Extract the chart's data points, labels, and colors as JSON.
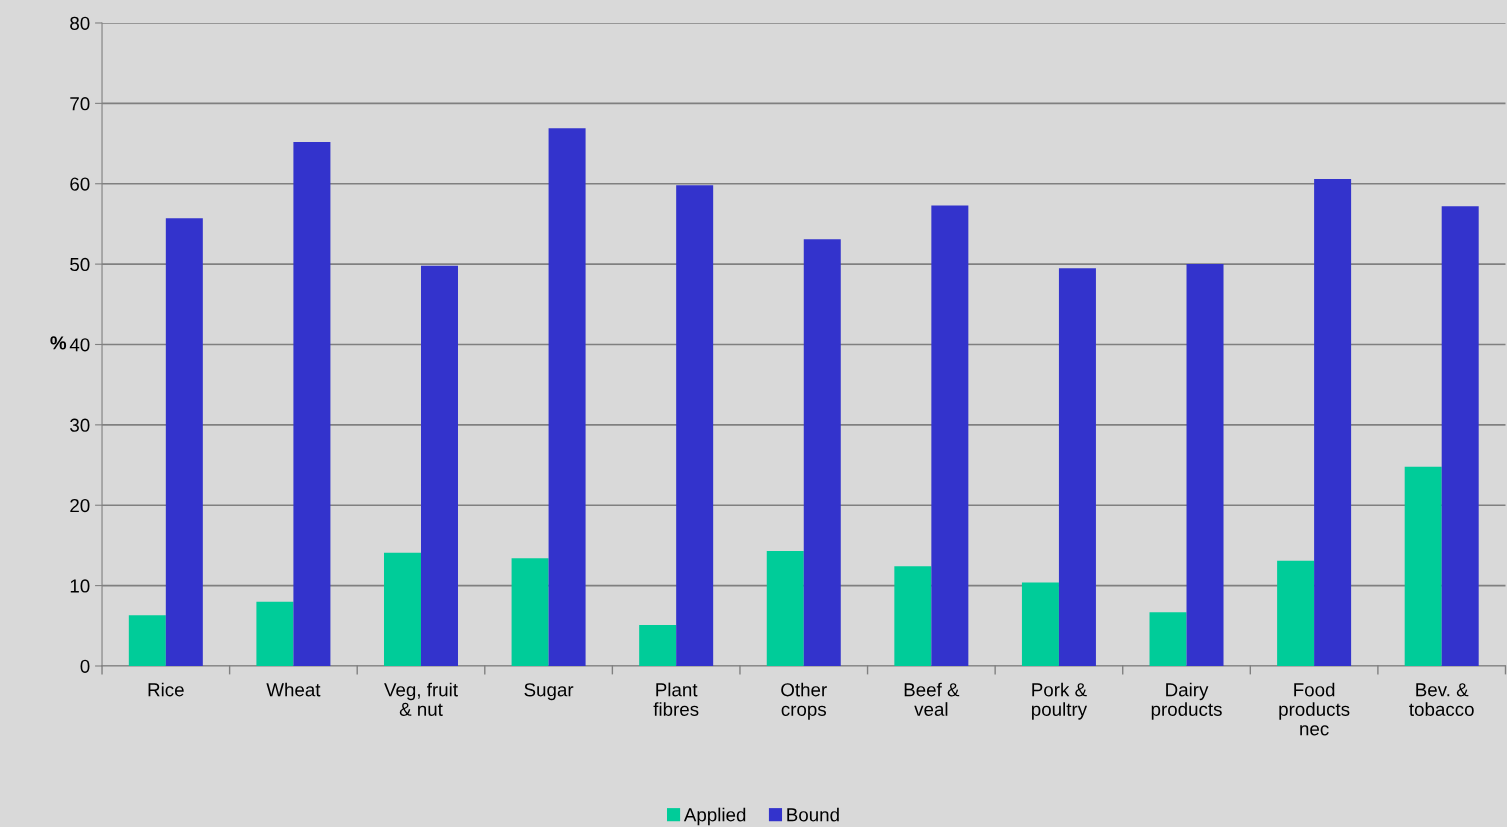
{
  "chart_data": {
    "type": "bar",
    "ylabel": "%",
    "categories": [
      "Rice",
      "Wheat",
      "Veg, fruit\n& nut",
      "Sugar",
      "Plant\nfibres",
      "Other\ncrops",
      "Beef &\nveal",
      "Pork &\npoultry",
      "Dairy\nproducts",
      "Food\nproducts\nnec",
      "Bev. &\ntobacco"
    ],
    "series": [
      {
        "name": "Applied",
        "color": "#00cc99",
        "values": [
          6.3,
          8.0,
          14.1,
          13.4,
          5.1,
          14.3,
          12.4,
          10.4,
          6.7,
          13.1,
          24.8
        ]
      },
      {
        "name": "Bound",
        "color": "#3333cc",
        "values": [
          55.7,
          65.2,
          49.8,
          66.9,
          59.8,
          53.1,
          57.3,
          49.5,
          50.0,
          60.6,
          57.2
        ]
      }
    ],
    "ylim": [
      0,
      80
    ],
    "yticks": [
      0,
      10,
      20,
      30,
      40,
      50,
      60,
      70,
      80
    ],
    "grid": "y",
    "legend": "bottom"
  }
}
